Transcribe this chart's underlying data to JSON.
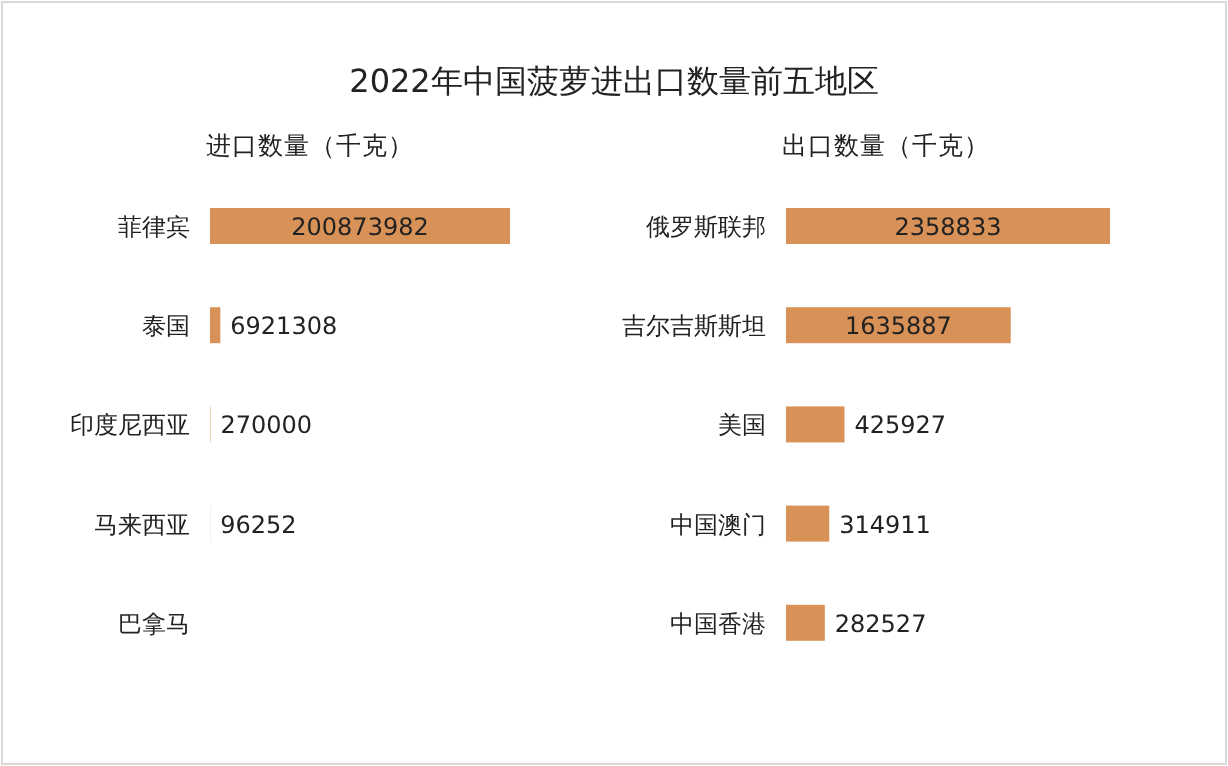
{
  "chart_data": [
    {
      "type": "bar",
      "orientation": "horizontal",
      "title": "2022年中国菠萝进出口数量前五地区",
      "subtitle": "进口数量（千克）",
      "categories": [
        "菲律宾",
        "泰国",
        "印度尼西亚",
        "马来西亚",
        "巴拿马"
      ],
      "series": [
        {
          "color": "#d89156",
          "values": [
            200873982,
            6921308,
            270000,
            96252,
            null
          ]
        }
      ],
      "data_labels": true
    },
    {
      "type": "bar",
      "orientation": "horizontal",
      "subtitle": "出口数量（千克）",
      "categories": [
        "俄罗斯联邦",
        "吉尔吉斯斯坦",
        "美国",
        "中国澳门",
        "中国香港"
      ],
      "series": [
        {
          "color": "#d89156",
          "values": [
            2358833,
            1635887,
            425927,
            314911,
            282527
          ]
        }
      ],
      "data_labels": true
    }
  ]
}
